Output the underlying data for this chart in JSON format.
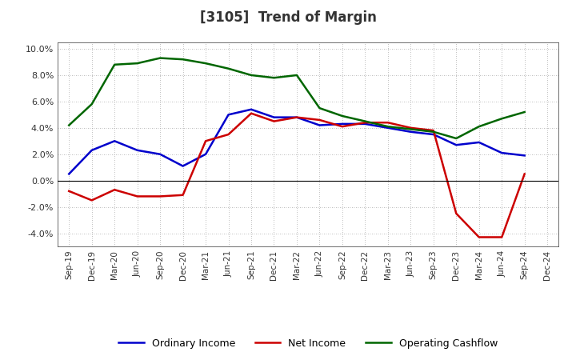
{
  "title": "[3105]  Trend of Margin",
  "x_labels": [
    "Sep-19",
    "Dec-19",
    "Mar-20",
    "Jun-20",
    "Sep-20",
    "Dec-20",
    "Mar-21",
    "Jun-21",
    "Sep-21",
    "Dec-21",
    "Mar-22",
    "Jun-22",
    "Sep-22",
    "Dec-22",
    "Mar-23",
    "Jun-23",
    "Sep-23",
    "Dec-23",
    "Mar-24",
    "Jun-24",
    "Sep-24",
    "Dec-24"
  ],
  "ordinary_income": [
    0.5,
    2.3,
    3.0,
    2.3,
    2.0,
    1.1,
    2.0,
    5.0,
    5.4,
    4.8,
    4.8,
    4.2,
    4.3,
    4.3,
    4.0,
    3.7,
    3.5,
    2.7,
    2.9,
    2.1,
    1.9,
    null
  ],
  "net_income": [
    -0.8,
    -1.5,
    -0.7,
    -1.2,
    -1.2,
    -1.1,
    3.0,
    3.5,
    5.1,
    4.5,
    4.8,
    4.6,
    4.1,
    4.4,
    4.4,
    4.0,
    3.8,
    -2.5,
    -4.3,
    -4.3,
    0.5,
    null
  ],
  "operating_cashflow": [
    4.2,
    5.8,
    8.8,
    8.9,
    9.3,
    9.2,
    8.9,
    8.5,
    8.0,
    7.8,
    8.0,
    5.5,
    4.9,
    4.5,
    4.1,
    3.9,
    3.7,
    3.2,
    4.1,
    4.7,
    5.2,
    null
  ],
  "ylim": [
    -5.0,
    10.5
  ],
  "yticks": [
    -4.0,
    -2.0,
    0.0,
    2.0,
    4.0,
    6.0,
    8.0,
    10.0
  ],
  "colors": {
    "ordinary_income": "#0000CC",
    "net_income": "#CC0000",
    "operating_cashflow": "#006600"
  },
  "title_color": "#333333",
  "legend_labels": [
    "Ordinary Income",
    "Net Income",
    "Operating Cashflow"
  ]
}
